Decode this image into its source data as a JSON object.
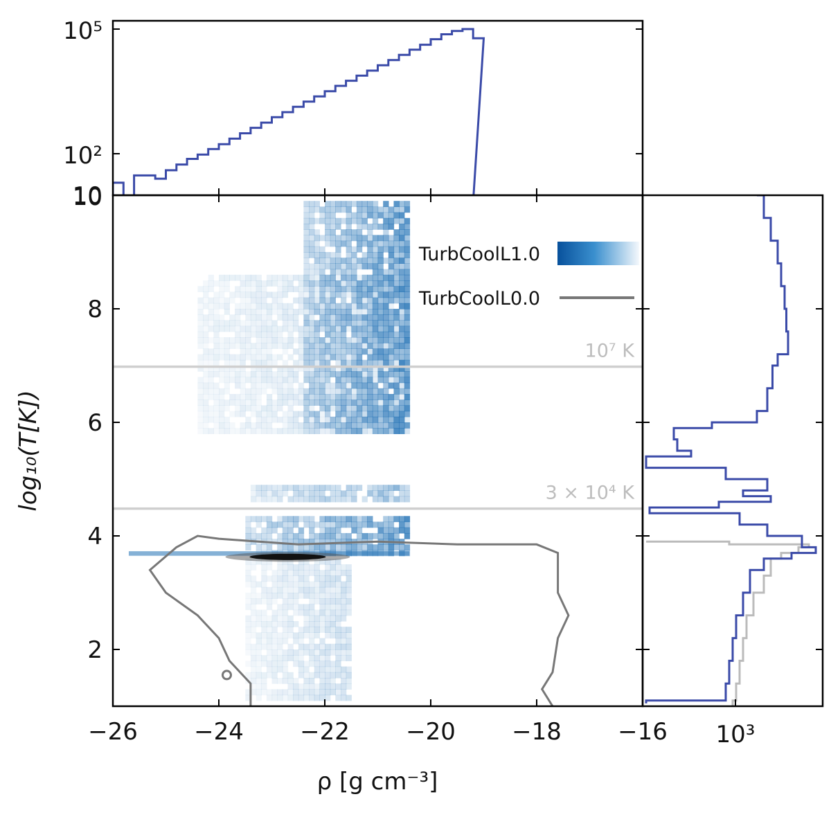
{
  "chart_data": [
    {
      "panel": "joint",
      "type": "heatmap",
      "xlabel": "ρ [g cm⁻³]",
      "ylabel": "log₁₀(T[K])",
      "xlim": [
        -26,
        -16
      ],
      "ylim": [
        1,
        10
      ],
      "x_tick_labels": [
        "−26",
        "−24",
        "−22",
        "−20",
        "−18",
        "−16"
      ],
      "x_ticks": [
        -26,
        -24,
        -22,
        -20,
        -18,
        -16
      ],
      "y_tick_labels": [
        "2",
        "4",
        "6",
        "8",
        "10"
      ],
      "y_ticks": [
        2,
        4,
        6,
        8,
        10
      ],
      "legend_position": "upper-right",
      "series": [
        {
          "name": "TurbCoolL1.0",
          "type": "heatmap",
          "color": "#08519c",
          "blobs": [
            {
              "x_range": [
                -22.4,
                -20.4
              ],
              "y_range": [
                5.8,
                9.8
              ],
              "density": "high"
            },
            {
              "x_range": [
                -24.4,
                -20.4
              ],
              "y_range": [
                5.8,
                8.5
              ],
              "density": "low"
            },
            {
              "x_range": [
                -23.4,
                -20.4
              ],
              "y_range": [
                4.6,
                4.85
              ],
              "density": "medium"
            },
            {
              "x_range": [
                -23.5,
                -20.4
              ],
              "y_range": [
                3.65,
                4.3
              ],
              "density": "high"
            },
            {
              "x_range": [
                -23.5,
                -21.5
              ],
              "y_range": [
                1.1,
                3.6
              ],
              "density": "low"
            }
          ]
        },
        {
          "name": "TurbCoolL0.0",
          "type": "contour",
          "color": "#777777",
          "outer_contour": [
            [
              -23.4,
              1.0
            ],
            [
              -23.4,
              1.4
            ],
            [
              -23.8,
              1.8
            ],
            [
              -24.0,
              2.2
            ],
            [
              -24.4,
              2.6
            ],
            [
              -25.0,
              3.0
            ],
            [
              -25.3,
              3.4
            ],
            [
              -24.8,
              3.8
            ],
            [
              -24.4,
              4.0
            ],
            [
              -24.0,
              3.95
            ],
            [
              -22.5,
              3.85
            ],
            [
              -21.0,
              3.9
            ],
            [
              -19.5,
              3.85
            ],
            [
              -18.0,
              3.85
            ],
            [
              -17.6,
              3.7
            ],
            [
              -17.6,
              3.0
            ],
            [
              -17.4,
              2.6
            ],
            [
              -17.6,
              2.2
            ],
            [
              -17.7,
              1.6
            ],
            [
              -17.9,
              1.3
            ],
            [
              -17.7,
              1.0
            ]
          ],
          "core": {
            "x_center": -22.7,
            "y": 3.63
          }
        }
      ],
      "reference_lines": [
        {
          "y": 6.98,
          "label": "10⁷ K"
        },
        {
          "y": 4.48,
          "label": "3 × 10⁴ K"
        }
      ]
    },
    {
      "panel": "top-marginal",
      "type": "line",
      "yscale": "log",
      "ylim": [
        10,
        100000
      ],
      "y_tick_labels": [
        "10",
        "10²",
        "10⁵"
      ],
      "y_ticks": [
        10,
        100,
        100000
      ],
      "color": "#3a4aa8",
      "x": [
        -26.0,
        -25.8,
        -25.6,
        -25.4,
        -25.2,
        -25.0,
        -24.8,
        -24.6,
        -24.4,
        -24.2,
        -24.0,
        -23.8,
        -23.6,
        -23.4,
        -23.2,
        -23.0,
        -22.8,
        -22.6,
        -22.4,
        -22.2,
        -22.0,
        -21.8,
        -21.6,
        -21.4,
        -21.2,
        -21.0,
        -20.8,
        -20.6,
        -20.4,
        -20.2,
        -20.0,
        -19.8,
        -19.6,
        -19.4,
        -19.2
      ],
      "y": [
        20,
        8,
        30,
        30,
        25,
        40,
        55,
        75,
        95,
        130,
        170,
        230,
        310,
        420,
        560,
        760,
        1000,
        1350,
        1800,
        2400,
        3200,
        4300,
        5700,
        7600,
        10000,
        13500,
        18000,
        24000,
        32000,
        42000,
        57000,
        75000,
        90000,
        100000,
        60000
      ]
    },
    {
      "panel": "right-marginal",
      "type": "line",
      "xscale": "log",
      "x_tick_labels": [
        "10³"
      ],
      "x_ticks": [
        1000
      ],
      "series": [
        {
          "name": "TurbCoolL1.0",
          "color": "#3a4aa8",
          "steps": [
            [
              10.0,
              3.3
            ],
            [
              9.6,
              3.5
            ],
            [
              9.2,
              3.7
            ],
            [
              8.8,
              3.9
            ],
            [
              8.4,
              4.0
            ],
            [
              8.0,
              4.1
            ],
            [
              7.6,
              4.15
            ],
            [
              7.2,
              4.2
            ],
            [
              7.0,
              3.9
            ],
            [
              6.6,
              3.75
            ],
            [
              6.2,
              3.6
            ],
            [
              6.0,
              3.3
            ],
            [
              5.9,
              2.0
            ],
            [
              5.7,
              0.9
            ],
            [
              5.5,
              1.0
            ],
            [
              5.4,
              1.4
            ],
            [
              5.2,
              0.1
            ],
            [
              5.0,
              2.4
            ],
            [
              4.8,
              3.6
            ],
            [
              4.7,
              2.9
            ],
            [
              4.6,
              3.7
            ],
            [
              4.5,
              2.2
            ],
            [
              4.4,
              0.2
            ],
            [
              4.2,
              2.8
            ],
            [
              4.0,
              3.6
            ],
            [
              3.8,
              4.6
            ],
            [
              3.7,
              5.0
            ],
            [
              3.6,
              4.3
            ],
            [
              3.4,
              3.5
            ],
            [
              3.0,
              3.1
            ],
            [
              2.6,
              2.9
            ],
            [
              2.2,
              2.7
            ],
            [
              1.8,
              2.6
            ],
            [
              1.4,
              2.5
            ],
            [
              1.1,
              2.4
            ],
            [
              1.05,
              0.1
            ]
          ]
        },
        {
          "name": "TurbCoolL0.0",
          "color": "#bbbbbb",
          "steps": [
            [
              3.9,
              0.1
            ],
            [
              3.85,
              2.5
            ],
            [
              3.8,
              4.8
            ],
            [
              3.7,
              4.5
            ],
            [
              3.6,
              4.0
            ],
            [
              3.3,
              3.7
            ],
            [
              3.0,
              3.5
            ],
            [
              2.6,
              3.2
            ],
            [
              2.2,
              3.0
            ],
            [
              1.8,
              2.9
            ],
            [
              1.4,
              2.8
            ],
            [
              1.1,
              2.7
            ],
            [
              1.0,
              2.6
            ]
          ]
        }
      ]
    }
  ]
}
